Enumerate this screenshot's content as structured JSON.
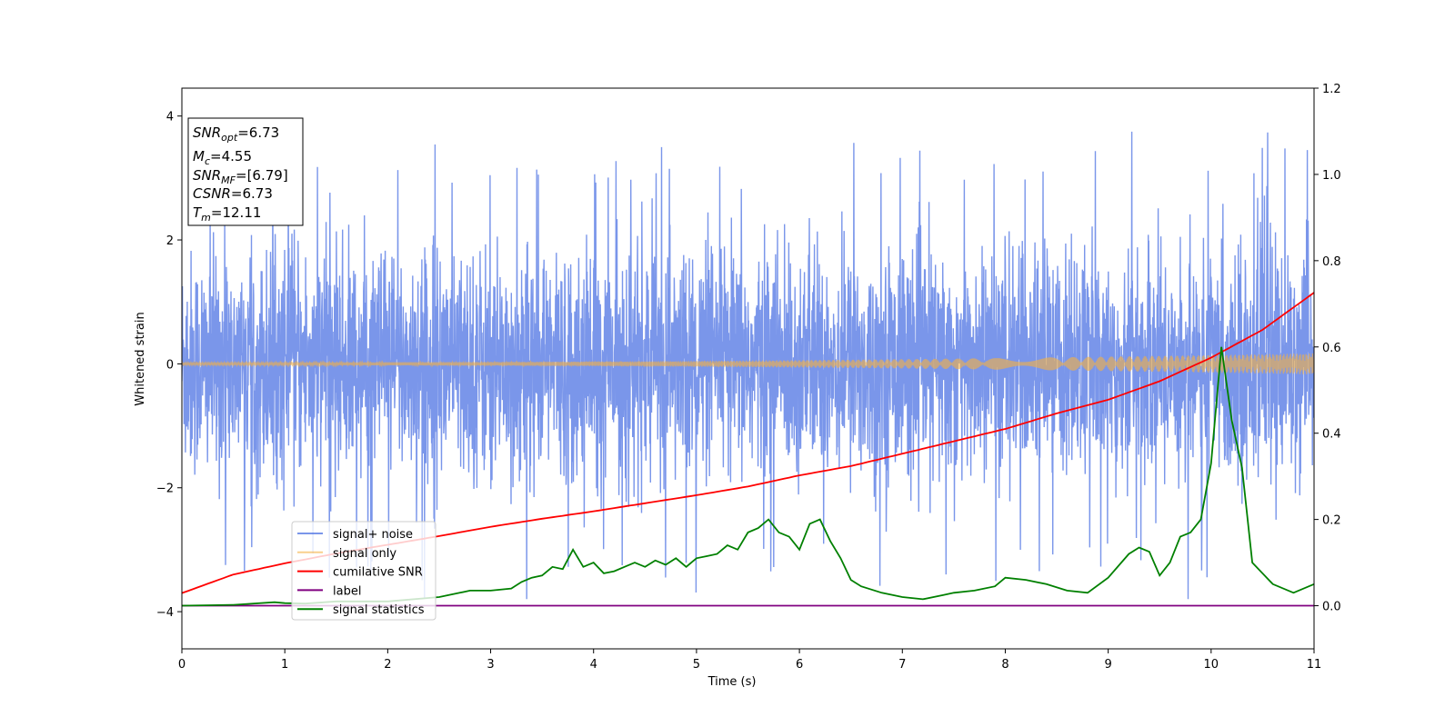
{
  "chart_data": {
    "type": "line",
    "xlabel": "Time (s)",
    "ylabel": "Whitened strain",
    "xlim": [
      0,
      11
    ],
    "ylim": [
      -4.6,
      4.45
    ],
    "y2lim": [
      -0.1,
      1.2
    ],
    "x_ticks": [
      "0",
      "1",
      "2",
      "3",
      "4",
      "5",
      "6",
      "7",
      "8",
      "9",
      "10",
      "11"
    ],
    "y_ticks": [
      "4",
      "2",
      "0",
      "−2",
      "−4"
    ],
    "y2_ticks": [
      "1.2",
      "1.0",
      "0.8",
      "0.6",
      "0.4",
      "0.2",
      "0.0"
    ],
    "grid": false,
    "legend_position": "lower-left",
    "info_box": {
      "snr_opt": {
        "base": "SNR",
        "sub": "opt",
        "value": "=6.73"
      },
      "mc": {
        "base": "M",
        "sub": "c",
        "value": "=4.55"
      },
      "snr_mf": {
        "base": "SNR",
        "sub": "MF",
        "value": "=[6.79]"
      },
      "csnr": {
        "base": "CSNR",
        "sub": "",
        "value": "=6.73"
      },
      "tm": {
        "base": "T",
        "sub": "m",
        "value": "=12.11"
      }
    },
    "series": [
      {
        "name": "signal+ noise",
        "color": "#4169e1",
        "axis": "left",
        "kind": "noise",
        "envelope_sigma": 0.9,
        "max": 4.05,
        "min": -4.15
      },
      {
        "name": "signal only",
        "color": "#f5b041",
        "axis": "left",
        "kind": "chirp",
        "amplitude_start": 0.02,
        "amplitude_end": 0.17
      },
      {
        "name": "cumilative SNR",
        "color": "#ff0000",
        "axis": "left",
        "x": [
          0,
          0.5,
          1,
          1.5,
          2,
          2.5,
          3,
          3.5,
          4,
          4.5,
          5,
          5.5,
          6,
          6.5,
          7,
          7.5,
          8,
          8.5,
          9,
          9.5,
          10,
          10.5,
          11
        ],
        "y": [
          -3.7,
          -3.4,
          -3.22,
          -3.06,
          -2.92,
          -2.78,
          -2.63,
          -2.5,
          -2.38,
          -2.25,
          -2.12,
          -1.98,
          -1.8,
          -1.65,
          -1.45,
          -1.25,
          -1.05,
          -0.8,
          -0.58,
          -0.28,
          0.1,
          0.55,
          1.15
        ]
      },
      {
        "name": "label",
        "color": "#800080",
        "axis": "right",
        "x": [
          0,
          11
        ],
        "y": [
          0.0,
          0.0
        ]
      },
      {
        "name": "signal statistics",
        "color": "#008000",
        "axis": "right",
        "x": [
          0,
          0.5,
          0.9,
          1.0,
          1.2,
          1.5,
          2.0,
          2.5,
          2.7,
          2.8,
          3.0,
          3.2,
          3.3,
          3.4,
          3.5,
          3.6,
          3.7,
          3.8,
          3.9,
          4.0,
          4.1,
          4.2,
          4.3,
          4.4,
          4.5,
          4.6,
          4.7,
          4.8,
          4.9,
          5.0,
          5.1,
          5.2,
          5.3,
          5.4,
          5.5,
          5.6,
          5.7,
          5.8,
          5.9,
          6.0,
          6.1,
          6.2,
          6.3,
          6.4,
          6.5,
          6.6,
          6.8,
          7.0,
          7.2,
          7.4,
          7.5,
          7.7,
          7.9,
          8.0,
          8.2,
          8.4,
          8.6,
          8.8,
          9.0,
          9.2,
          9.3,
          9.4,
          9.5,
          9.6,
          9.7,
          9.8,
          9.9,
          10.0,
          10.1,
          10.2,
          10.3,
          10.4,
          10.6,
          10.8,
          11.0
        ],
        "y": [
          0.0,
          0.002,
          0.008,
          0.006,
          0.005,
          0.01,
          0.01,
          0.02,
          0.03,
          0.035,
          0.035,
          0.04,
          0.055,
          0.065,
          0.07,
          0.09,
          0.085,
          0.13,
          0.09,
          0.1,
          0.075,
          0.08,
          0.09,
          0.1,
          0.09,
          0.105,
          0.095,
          0.11,
          0.09,
          0.11,
          0.115,
          0.12,
          0.14,
          0.13,
          0.17,
          0.18,
          0.2,
          0.17,
          0.16,
          0.13,
          0.19,
          0.2,
          0.15,
          0.11,
          0.06,
          0.045,
          0.03,
          0.02,
          0.015,
          0.025,
          0.03,
          0.035,
          0.045,
          0.065,
          0.06,
          0.05,
          0.035,
          0.03,
          0.065,
          0.12,
          0.135,
          0.125,
          0.07,
          0.1,
          0.16,
          0.17,
          0.2,
          0.33,
          0.6,
          0.43,
          0.32,
          0.1,
          0.05,
          0.03,
          0.05
        ]
      }
    ]
  }
}
